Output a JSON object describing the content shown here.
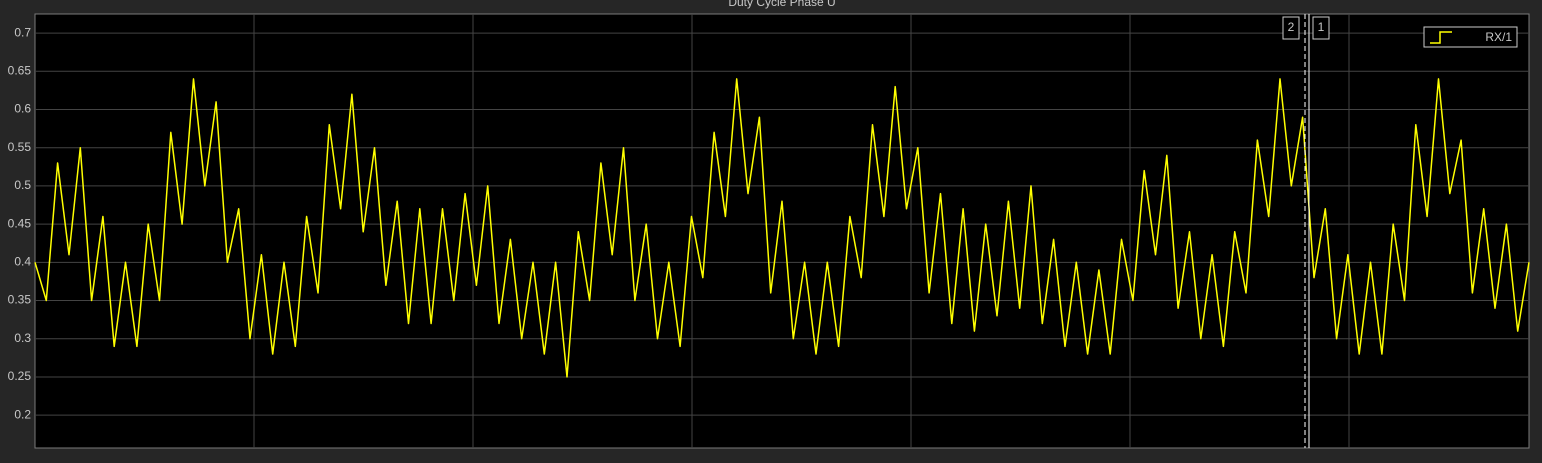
{
  "chart_data": {
    "type": "line",
    "title": "Duty Cycle Phase U",
    "ylim": [
      0.157,
      0.725
    ],
    "yticks": [
      0.2,
      0.25,
      0.3,
      0.35,
      0.4,
      0.45,
      0.5,
      0.55,
      0.6,
      0.65,
      0.7
    ],
    "grid": true,
    "cursor_labels": [
      "2",
      "1"
    ],
    "series": [
      {
        "name": "RX/1",
        "color": "#ffff00",
        "values": [
          0.4,
          0.35,
          0.53,
          0.41,
          0.55,
          0.35,
          0.46,
          0.29,
          0.4,
          0.29,
          0.45,
          0.35,
          0.57,
          0.45,
          0.64,
          0.5,
          0.61,
          0.4,
          0.47,
          0.3,
          0.41,
          0.28,
          0.4,
          0.29,
          0.46,
          0.36,
          0.58,
          0.47,
          0.62,
          0.44,
          0.55,
          0.37,
          0.48,
          0.32,
          0.47,
          0.32,
          0.47,
          0.35,
          0.49,
          0.37,
          0.5,
          0.32,
          0.43,
          0.3,
          0.4,
          0.28,
          0.4,
          0.25,
          0.44,
          0.35,
          0.53,
          0.41,
          0.55,
          0.35,
          0.45,
          0.3,
          0.4,
          0.29,
          0.46,
          0.38,
          0.57,
          0.46,
          0.64,
          0.49,
          0.59,
          0.36,
          0.48,
          0.3,
          0.4,
          0.28,
          0.4,
          0.29,
          0.46,
          0.38,
          0.58,
          0.46,
          0.63,
          0.47,
          0.55,
          0.36,
          0.49,
          0.32,
          0.47,
          0.31,
          0.45,
          0.33,
          0.48,
          0.34,
          0.5,
          0.32,
          0.43,
          0.29,
          0.4,
          0.28,
          0.39,
          0.28,
          0.43,
          0.35,
          0.52,
          0.41,
          0.54,
          0.34,
          0.44,
          0.3,
          0.41,
          0.29,
          0.44,
          0.36,
          0.56,
          0.46,
          0.64,
          0.5,
          0.59,
          0.38,
          0.47,
          0.3,
          0.41,
          0.28,
          0.4,
          0.28,
          0.45,
          0.35,
          0.58,
          0.46,
          0.64,
          0.49,
          0.56,
          0.36,
          0.47,
          0.34,
          0.45,
          0.31,
          0.4
        ]
      }
    ]
  }
}
